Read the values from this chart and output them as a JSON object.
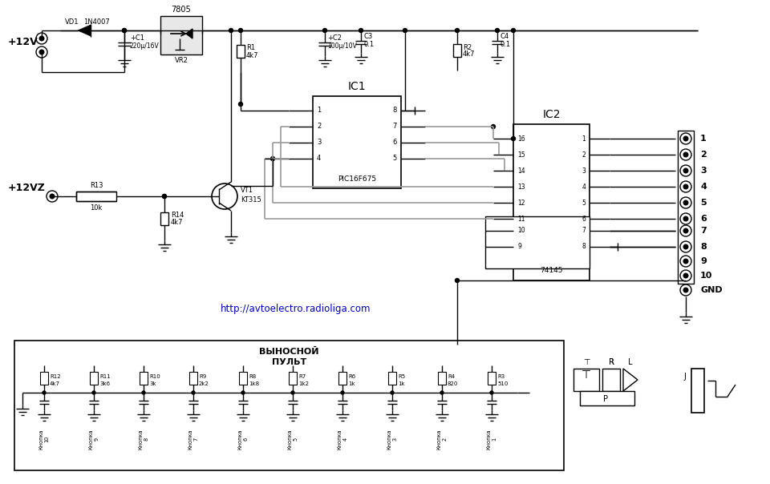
{
  "bg_color": "#ffffff",
  "line_color": "#000000",
  "gray_color": "#999999",
  "text_color": "#000000",
  "blue_color": "#0000cc",
  "url_text": "http://avtoelectro.radioliga.com",
  "plus12v_label": "+12V",
  "plus12vz_label": "+12VZ",
  "ic1_label": "IC1",
  "ic1_sub": "PIC16F675",
  "ic2_label": "IC2",
  "ic2_sub": "74145",
  "vynos_label": "ВЫНОСНОЙ\nПУЛЬТ",
  "res_labels": [
    "R12",
    "R11",
    "R10",
    "R9",
    "R8",
    "R7",
    "R6",
    "R5",
    "R4",
    "R3"
  ],
  "res_vals": [
    "4k7",
    "3k6",
    "3k",
    "2k2",
    "1k8",
    "1k2",
    "1k",
    "1k",
    "820",
    "510"
  ],
  "btn_labels": [
    "Кнопка\n10",
    "Кнопка\n9",
    "Кнопка\n8",
    "Кнопка\n7",
    "Кнопка\n6",
    "Кнопка\n5",
    "Кнопка\n4",
    "Кнопка\n3",
    "Кнопка\n2",
    "Кнопка\n1"
  ],
  "conn_labels": [
    "1",
    "2",
    "3",
    "4",
    "5",
    "6",
    "7",
    "8",
    "9",
    "10",
    "GND"
  ]
}
